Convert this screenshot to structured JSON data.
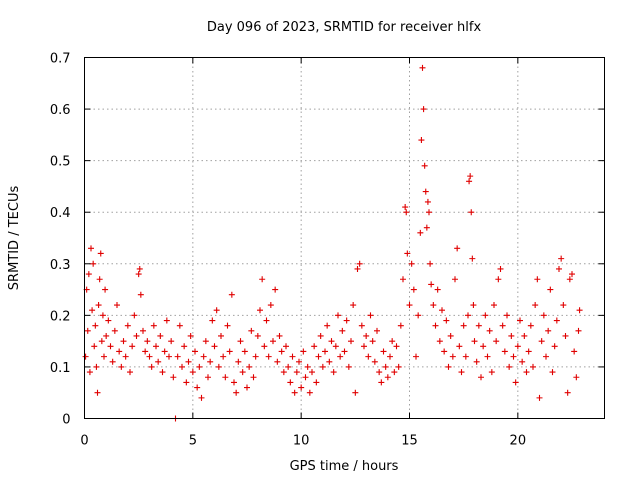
{
  "chart_data": {
    "type": "scatter",
    "title": "Day 096 of 2023, SRMTID for receiver hlfx",
    "xlabel": "GPS time / hours",
    "ylabel": "SRMTID / TECUs",
    "xlim": [
      0,
      24
    ],
    "ylim": [
      0,
      0.7
    ],
    "xticks": [
      0,
      5,
      10,
      15,
      20
    ],
    "yticks": [
      0,
      0.1,
      0.2,
      0.3,
      0.4,
      0.5,
      0.6,
      0.7
    ],
    "xtick_labels": [
      "0",
      "5",
      "10",
      "15",
      "20"
    ],
    "ytick_labels": [
      "0",
      "0.1",
      "0.2",
      "0.3",
      "0.4",
      "0.5",
      "0.6",
      "0.7"
    ],
    "grid": true,
    "marker": "+",
    "color": "#e00000",
    "series": [
      {
        "name": "SRMTID",
        "points": [
          [
            0.05,
            0.12
          ],
          [
            0.1,
            0.25
          ],
          [
            0.15,
            0.17
          ],
          [
            0.2,
            0.28
          ],
          [
            0.25,
            0.09
          ],
          [
            0.3,
            0.33
          ],
          [
            0.35,
            0.21
          ],
          [
            0.4,
            0.3
          ],
          [
            0.45,
            0.14
          ],
          [
            0.5,
            0.18
          ],
          [
            0.55,
            0.1
          ],
          [
            0.6,
            0.05
          ],
          [
            0.65,
            0.22
          ],
          [
            0.7,
            0.27
          ],
          [
            0.75,
            0.32
          ],
          [
            0.8,
            0.15
          ],
          [
            0.85,
            0.2
          ],
          [
            0.9,
            0.12
          ],
          [
            0.95,
            0.25
          ],
          [
            1.0,
            0.16
          ],
          [
            1.1,
            0.19
          ],
          [
            1.2,
            0.14
          ],
          [
            1.3,
            0.11
          ],
          [
            1.4,
            0.17
          ],
          [
            1.5,
            0.22
          ],
          [
            1.6,
            0.13
          ],
          [
            1.7,
            0.1
          ],
          [
            1.8,
            0.15
          ],
          [
            1.9,
            0.12
          ],
          [
            2.0,
            0.18
          ],
          [
            2.1,
            0.09
          ],
          [
            2.2,
            0.14
          ],
          [
            2.3,
            0.2
          ],
          [
            2.4,
            0.16
          ],
          [
            2.5,
            0.28
          ],
          [
            2.55,
            0.29
          ],
          [
            2.6,
            0.24
          ],
          [
            2.7,
            0.17
          ],
          [
            2.8,
            0.13
          ],
          [
            2.9,
            0.15
          ],
          [
            3.0,
            0.12
          ],
          [
            3.1,
            0.1
          ],
          [
            3.2,
            0.18
          ],
          [
            3.3,
            0.14
          ],
          [
            3.4,
            0.11
          ],
          [
            3.5,
            0.16
          ],
          [
            3.6,
            0.09
          ],
          [
            3.7,
            0.13
          ],
          [
            3.8,
            0.19
          ],
          [
            3.9,
            0.12
          ],
          [
            4.0,
            0.15
          ],
          [
            4.1,
            0.08
          ],
          [
            4.2,
            0.0
          ],
          [
            4.3,
            0.12
          ],
          [
            4.4,
            0.18
          ],
          [
            4.5,
            0.1
          ],
          [
            4.6,
            0.14
          ],
          [
            4.7,
            0.07
          ],
          [
            4.8,
            0.11
          ],
          [
            4.9,
            0.16
          ],
          [
            5.0,
            0.09
          ],
          [
            5.1,
            0.13
          ],
          [
            5.2,
            0.06
          ],
          [
            5.3,
            0.1
          ],
          [
            5.4,
            0.04
          ],
          [
            5.5,
            0.12
          ],
          [
            5.6,
            0.15
          ],
          [
            5.7,
            0.08
          ],
          [
            5.8,
            0.11
          ],
          [
            5.9,
            0.19
          ],
          [
            6.0,
            0.14
          ],
          [
            6.1,
            0.21
          ],
          [
            6.2,
            0.1
          ],
          [
            6.3,
            0.16
          ],
          [
            6.4,
            0.12
          ],
          [
            6.5,
            0.08
          ],
          [
            6.6,
            0.18
          ],
          [
            6.7,
            0.13
          ],
          [
            6.8,
            0.24
          ],
          [
            6.9,
            0.07
          ],
          [
            7.0,
            0.05
          ],
          [
            7.1,
            0.11
          ],
          [
            7.2,
            0.15
          ],
          [
            7.3,
            0.09
          ],
          [
            7.4,
            0.13
          ],
          [
            7.5,
            0.06
          ],
          [
            7.6,
            0.1
          ],
          [
            7.7,
            0.17
          ],
          [
            7.8,
            0.08
          ],
          [
            7.9,
            0.12
          ],
          [
            8.0,
            0.16
          ],
          [
            8.1,
            0.21
          ],
          [
            8.2,
            0.27
          ],
          [
            8.3,
            0.14
          ],
          [
            8.4,
            0.19
          ],
          [
            8.5,
            0.12
          ],
          [
            8.6,
            0.22
          ],
          [
            8.7,
            0.15
          ],
          [
            8.8,
            0.25
          ],
          [
            8.9,
            0.11
          ],
          [
            9.0,
            0.16
          ],
          [
            9.1,
            0.13
          ],
          [
            9.2,
            0.09
          ],
          [
            9.3,
            0.14
          ],
          [
            9.4,
            0.1
          ],
          [
            9.5,
            0.07
          ],
          [
            9.6,
            0.12
          ],
          [
            9.7,
            0.05
          ],
          [
            9.8,
            0.09
          ],
          [
            9.9,
            0.11
          ],
          [
            10.0,
            0.06
          ],
          [
            10.1,
            0.13
          ],
          [
            10.2,
            0.08
          ],
          [
            10.3,
            0.1
          ],
          [
            10.4,
            0.05
          ],
          [
            10.5,
            0.09
          ],
          [
            10.6,
            0.14
          ],
          [
            10.7,
            0.07
          ],
          [
            10.8,
            0.12
          ],
          [
            10.9,
            0.16
          ],
          [
            11.0,
            0.1
          ],
          [
            11.1,
            0.13
          ],
          [
            11.2,
            0.18
          ],
          [
            11.3,
            0.11
          ],
          [
            11.4,
            0.15
          ],
          [
            11.5,
            0.09
          ],
          [
            11.6,
            0.14
          ],
          [
            11.7,
            0.2
          ],
          [
            11.8,
            0.12
          ],
          [
            11.9,
            0.17
          ],
          [
            12.0,
            0.13
          ],
          [
            12.1,
            0.19
          ],
          [
            12.2,
            0.1
          ],
          [
            12.3,
            0.15
          ],
          [
            12.4,
            0.22
          ],
          [
            12.5,
            0.05
          ],
          [
            12.6,
            0.29
          ],
          [
            12.7,
            0.3
          ],
          [
            12.8,
            0.18
          ],
          [
            12.9,
            0.14
          ],
          [
            13.0,
            0.16
          ],
          [
            13.1,
            0.12
          ],
          [
            13.2,
            0.2
          ],
          [
            13.3,
            0.15
          ],
          [
            13.4,
            0.11
          ],
          [
            13.5,
            0.17
          ],
          [
            13.6,
            0.09
          ],
          [
            13.7,
            0.07
          ],
          [
            13.8,
            0.13
          ],
          [
            13.9,
            0.1
          ],
          [
            14.0,
            0.08
          ],
          [
            14.1,
            0.12
          ],
          [
            14.2,
            0.15
          ],
          [
            14.3,
            0.09
          ],
          [
            14.4,
            0.14
          ],
          [
            14.5,
            0.1
          ],
          [
            14.6,
            0.18
          ],
          [
            14.7,
            0.27
          ],
          [
            14.8,
            0.41
          ],
          [
            14.85,
            0.4
          ],
          [
            14.9,
            0.32
          ],
          [
            15.0,
            0.22
          ],
          [
            15.1,
            0.3
          ],
          [
            15.2,
            0.25
          ],
          [
            15.3,
            0.12
          ],
          [
            15.4,
            0.2
          ],
          [
            15.5,
            0.36
          ],
          [
            15.55,
            0.54
          ],
          [
            15.6,
            0.68
          ],
          [
            15.65,
            0.6
          ],
          [
            15.7,
            0.49
          ],
          [
            15.75,
            0.44
          ],
          [
            15.8,
            0.37
          ],
          [
            15.85,
            0.42
          ],
          [
            15.9,
            0.4
          ],
          [
            15.95,
            0.3
          ],
          [
            16.0,
            0.26
          ],
          [
            16.1,
            0.22
          ],
          [
            16.2,
            0.18
          ],
          [
            16.3,
            0.25
          ],
          [
            16.4,
            0.15
          ],
          [
            16.5,
            0.21
          ],
          [
            16.6,
            0.13
          ],
          [
            16.7,
            0.19
          ],
          [
            16.8,
            0.1
          ],
          [
            16.9,
            0.16
          ],
          [
            17.0,
            0.12
          ],
          [
            17.1,
            0.27
          ],
          [
            17.2,
            0.33
          ],
          [
            17.3,
            0.14
          ],
          [
            17.4,
            0.09
          ],
          [
            17.5,
            0.18
          ],
          [
            17.6,
            0.12
          ],
          [
            17.7,
            0.2
          ],
          [
            17.75,
            0.46
          ],
          [
            17.8,
            0.47
          ],
          [
            17.85,
            0.4
          ],
          [
            17.9,
            0.31
          ],
          [
            17.95,
            0.22
          ],
          [
            18.0,
            0.15
          ],
          [
            18.1,
            0.11
          ],
          [
            18.2,
            0.18
          ],
          [
            18.3,
            0.08
          ],
          [
            18.4,
            0.14
          ],
          [
            18.5,
            0.2
          ],
          [
            18.6,
            0.12
          ],
          [
            18.7,
            0.17
          ],
          [
            18.8,
            0.09
          ],
          [
            18.9,
            0.22
          ],
          [
            19.0,
            0.15
          ],
          [
            19.1,
            0.27
          ],
          [
            19.2,
            0.29
          ],
          [
            19.3,
            0.18
          ],
          [
            19.4,
            0.13
          ],
          [
            19.5,
            0.2
          ],
          [
            19.6,
            0.1
          ],
          [
            19.7,
            0.16
          ],
          [
            19.8,
            0.12
          ],
          [
            19.9,
            0.07
          ],
          [
            20.0,
            0.14
          ],
          [
            20.1,
            0.19
          ],
          [
            20.2,
            0.11
          ],
          [
            20.3,
            0.16
          ],
          [
            20.4,
            0.09
          ],
          [
            20.5,
            0.13
          ],
          [
            20.6,
            0.18
          ],
          [
            20.7,
            0.1
          ],
          [
            20.8,
            0.22
          ],
          [
            20.9,
            0.27
          ],
          [
            21.0,
            0.04
          ],
          [
            21.1,
            0.15
          ],
          [
            21.2,
            0.2
          ],
          [
            21.3,
            0.12
          ],
          [
            21.4,
            0.17
          ],
          [
            21.5,
            0.25
          ],
          [
            21.6,
            0.09
          ],
          [
            21.7,
            0.14
          ],
          [
            21.8,
            0.19
          ],
          [
            21.9,
            0.29
          ],
          [
            22.0,
            0.31
          ],
          [
            22.1,
            0.22
          ],
          [
            22.2,
            0.16
          ],
          [
            22.3,
            0.05
          ],
          [
            22.4,
            0.27
          ],
          [
            22.5,
            0.28
          ],
          [
            22.6,
            0.13
          ],
          [
            22.7,
            0.08
          ],
          [
            22.8,
            0.17
          ],
          [
            22.85,
            0.21
          ]
        ]
      }
    ]
  }
}
